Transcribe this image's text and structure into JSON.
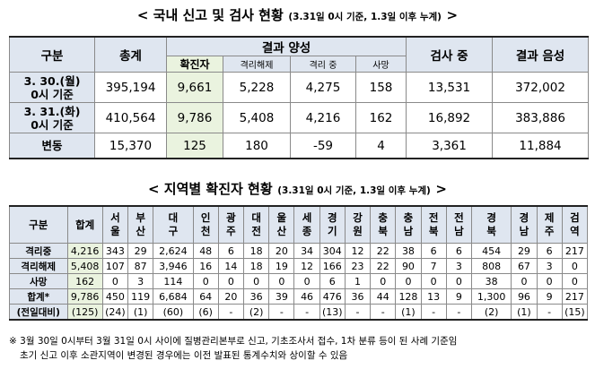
{
  "table1": {
    "title_main": "< 국내 신고 및 검사 현황",
    "title_sub": "(3.31일 0시 기준, 1.3일 이후 누계)",
    "title_end": ">",
    "h_category": "구분",
    "h_total": "총계",
    "h_positive": "결과 양성",
    "h_confirmed": "확진자",
    "h_released": "격리해제",
    "h_isolated": "격리 중",
    "h_deaths": "사망",
    "h_testing": "검사 중",
    "h_negative": "결과 음성",
    "rows": [
      {
        "label1": "3. 30.(월)",
        "label2": "0시 기준",
        "total": "395,194",
        "confirmed": "9,661",
        "released": "5,228",
        "isolated": "4,275",
        "deaths": "158",
        "testing": "13,531",
        "negative": "372,002"
      },
      {
        "label1": "3. 31.(화)",
        "label2": "0시 기준",
        "total": "410,564",
        "confirmed": "9,786",
        "released": "5,408",
        "isolated": "4,216",
        "deaths": "162",
        "testing": "16,892",
        "negative": "383,886"
      },
      {
        "label1": "변동",
        "label2": "",
        "total": "15,370",
        "confirmed": "125",
        "released": "180",
        "isolated": "-59",
        "deaths": "4",
        "testing": "3,361",
        "negative": "11,884"
      }
    ]
  },
  "table2": {
    "title_main": "< 지역별 확진자 현황",
    "title_sub": "(3.31일 0시 기준, 1.3일 이후 누계)",
    "title_end": ">",
    "h_category": "구분",
    "h_total": "합계",
    "regions": [
      [
        "서",
        "울"
      ],
      [
        "부",
        "산"
      ],
      [
        "대",
        "구"
      ],
      [
        "인",
        "천"
      ],
      [
        "광",
        "주"
      ],
      [
        "대",
        "전"
      ],
      [
        "울",
        "산"
      ],
      [
        "세",
        "종"
      ],
      [
        "경",
        "기"
      ],
      [
        "강",
        "원"
      ],
      [
        "충",
        "북"
      ],
      [
        "충",
        "남"
      ],
      [
        "전",
        "북"
      ],
      [
        "전",
        "남"
      ],
      [
        "경",
        "북"
      ],
      [
        "경",
        "남"
      ],
      [
        "제",
        "주"
      ],
      [
        "검",
        "역"
      ]
    ],
    "rows": [
      {
        "label": "격리중",
        "total": "4,216",
        "values": [
          "343",
          "29",
          "2,624",
          "48",
          "6",
          "18",
          "20",
          "34",
          "304",
          "12",
          "22",
          "38",
          "6",
          "6",
          "454",
          "29",
          "6",
          "217"
        ]
      },
      {
        "label": "격리해제",
        "total": "5,408",
        "values": [
          "107",
          "87",
          "3,946",
          "16",
          "14",
          "18",
          "19",
          "12",
          "166",
          "23",
          "22",
          "90",
          "7",
          "3",
          "808",
          "67",
          "3",
          "0"
        ]
      },
      {
        "label": "사망",
        "total": "162",
        "values": [
          "0",
          "3",
          "114",
          "0",
          "0",
          "0",
          "0",
          "0",
          "6",
          "1",
          "0",
          "0",
          "0",
          "0",
          "38",
          "0",
          "0",
          "0"
        ]
      },
      {
        "label": "합계*",
        "total": "9,786",
        "values": [
          "450",
          "119",
          "6,684",
          "64",
          "20",
          "36",
          "39",
          "46",
          "476",
          "36",
          "44",
          "128",
          "13",
          "9",
          "1,300",
          "96",
          "9",
          "217"
        ]
      },
      {
        "label": "(전일대비)",
        "total": "(125)",
        "values": [
          "(24)",
          "(1)",
          "(60)",
          "(6)",
          "-",
          "(2)",
          "-",
          "-",
          "(13)",
          "-",
          "-",
          "(1)",
          "-",
          "-",
          "(2)",
          "(1)",
          "-",
          "(15)"
        ]
      }
    ]
  },
  "notes": {
    "line1": "※ 3월 30일 0시부터 3월 31일 0시 사이에 질병관리본부로 신고, 기초조사서 접수, 1차 분류 등이 된 사례 기준임",
    "line2": "초기 신고 이후 소관지역이 변경된 경우에는 이전 발표된 통계수치와 상이할 수 있음"
  }
}
